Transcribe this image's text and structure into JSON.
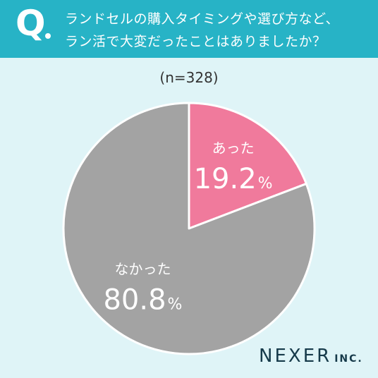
{
  "header": {
    "q_mark": "Q",
    "question_line1": "ランドセルの購入タイミングや選び方など、",
    "question_line2": "ラン活で大変だったことはありましたか？"
  },
  "sample_label": "(n=328)",
  "brand": {
    "name": "NEXER",
    "suffix": "INC."
  },
  "colors": {
    "header": "#27b3c6",
    "background": "#dff4f7",
    "pink": "#f07a9c",
    "gray": "#a3a3a3"
  },
  "chart_data": {
    "type": "pie",
    "title": "",
    "slices": [
      {
        "label": "あった",
        "value": 19.2,
        "display": "19.2",
        "unit": "%",
        "color": "#f07a9c"
      },
      {
        "label": "なかった",
        "value": 80.8,
        "display": "80.8",
        "unit": "%",
        "color": "#a3a3a3"
      }
    ]
  }
}
